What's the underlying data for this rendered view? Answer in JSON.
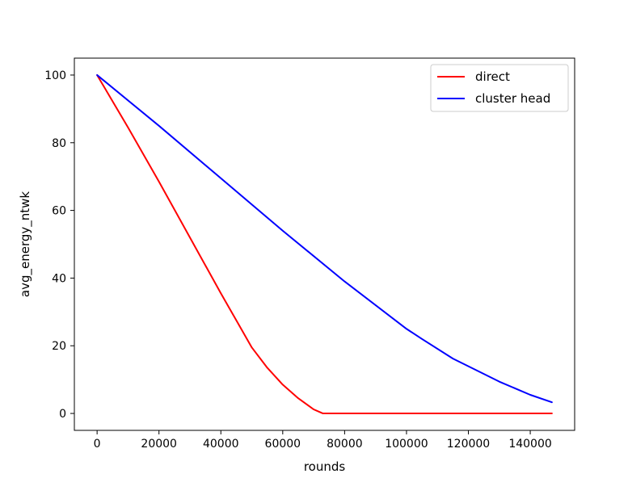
{
  "chart_data": {
    "type": "line",
    "xlabel": "rounds",
    "ylabel": "avg_energy_ntwk",
    "xlim": [
      -7350,
      154350
    ],
    "ylim": [
      -5,
      105
    ],
    "x_ticks": [
      0,
      20000,
      40000,
      60000,
      80000,
      100000,
      120000,
      140000
    ],
    "x_tick_labels": [
      "0",
      "20000",
      "40000",
      "60000",
      "80000",
      "100000",
      "120000",
      "140000"
    ],
    "y_ticks": [
      0,
      20,
      40,
      60,
      80,
      100
    ],
    "y_tick_labels": [
      "0",
      "20",
      "40",
      "60",
      "80",
      "100"
    ],
    "grid": false,
    "legend_position": "top-right",
    "series": [
      {
        "name": "direct",
        "color": "#ff0000",
        "x": [
          0,
          10000,
          20000,
          30000,
          40000,
          45000,
          50000,
          55000,
          60000,
          65000,
          70000,
          73000,
          80000,
          100000,
          120000,
          140000,
          147000
        ],
        "y": [
          100,
          84.5,
          68.5,
          52,
          35.5,
          27.5,
          19.5,
          13.5,
          8.5,
          4.5,
          1.2,
          0,
          0,
          0,
          0,
          0,
          0
        ]
      },
      {
        "name": "cluster head",
        "color": "#0000ff",
        "x": [
          0,
          20000,
          40000,
          60000,
          80000,
          100000,
          105000,
          115000,
          130000,
          140000,
          147000
        ],
        "y": [
          100,
          85,
          69.5,
          54,
          39,
          25,
          22,
          16.2,
          9.4,
          5.5,
          3.3
        ]
      }
    ]
  }
}
